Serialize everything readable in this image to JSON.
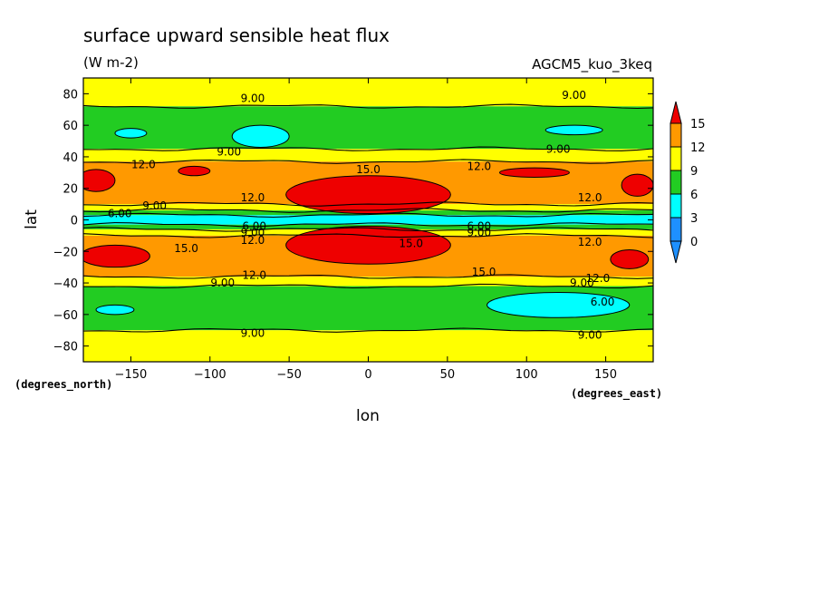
{
  "chart_data": {
    "type": "heatmap",
    "title": "surface upward sensible heat flux",
    "units": "(W m-2)",
    "model": "AGCM5_kuo_3keq",
    "xlabel": "lon",
    "ylabel": "lat",
    "x_units_label": "(degrees_east)",
    "y_units_label": "(degrees_north)",
    "xlim": [
      -180,
      180
    ],
    "ylim": [
      -90,
      90
    ],
    "xticks": [
      -150,
      -100,
      -50,
      0,
      50,
      100,
      150
    ],
    "yticks": [
      -80,
      -60,
      -40,
      -20,
      0,
      20,
      40,
      60,
      80
    ],
    "levels": [
      0,
      3,
      6,
      9,
      12,
      15
    ],
    "colorbar": {
      "labels": [
        "0",
        "3",
        "6",
        "9",
        "12",
        "15"
      ],
      "colors": [
        "#ffffff",
        "#1e90ff",
        "#00ffff",
        "#22cc22",
        "#ffff00",
        "#ff9900",
        "#ee0000"
      ]
    },
    "bands": [
      {
        "lat_from": 72,
        "lat_to": 90,
        "level": 9
      },
      {
        "lat_from": 45,
        "lat_to": 72,
        "level": 6
      },
      {
        "lat_from": 37,
        "lat_to": 45,
        "level": 9
      },
      {
        "lat_from": 10,
        "lat_to": 37,
        "level": 12
      },
      {
        "lat_from": 6,
        "lat_to": 10,
        "level": 9
      },
      {
        "lat_from": 3,
        "lat_to": 6,
        "level": 6
      },
      {
        "lat_from": -3,
        "lat_to": 3,
        "level": 3
      },
      {
        "lat_from": -6,
        "lat_to": -3,
        "level": 6
      },
      {
        "lat_from": -10,
        "lat_to": -6,
        "level": 9
      },
      {
        "lat_from": -36,
        "lat_to": -10,
        "level": 12
      },
      {
        "lat_from": -42,
        "lat_to": -36,
        "level": 9
      },
      {
        "lat_from": -70,
        "lat_to": -42,
        "level": 6
      },
      {
        "lat_from": -90,
        "lat_to": -70,
        "level": 9
      }
    ],
    "patches": [
      {
        "lon": 0,
        "lat": 16,
        "rlon": 52,
        "rlat": 12,
        "level": 15
      },
      {
        "lon": 0,
        "lat": -16,
        "rlon": 52,
        "rlat": 12,
        "level": 15
      },
      {
        "lon": 105,
        "lat": 30,
        "rlon": 22,
        "rlat": 3,
        "level": 15
      },
      {
        "lon": -172,
        "lat": 25,
        "rlon": 12,
        "rlat": 7,
        "level": 15
      },
      {
        "lon": 170,
        "lat": 22,
        "rlon": 10,
        "rlat": 7,
        "level": 15
      },
      {
        "lon": -110,
        "lat": 31,
        "rlon": 10,
        "rlat": 3,
        "level": 15
      },
      {
        "lon": -160,
        "lat": -23,
        "rlon": 22,
        "rlat": 7,
        "level": 15
      },
      {
        "lon": 165,
        "lat": -25,
        "rlon": 12,
        "rlat": 6,
        "level": 15
      },
      {
        "lon": -68,
        "lat": 53,
        "rlon": 18,
        "rlat": 7,
        "level": 3
      },
      {
        "lon": 130,
        "lat": 57,
        "rlon": 18,
        "rlat": 3,
        "level": 3
      },
      {
        "lon": -150,
        "lat": 55,
        "rlon": 10,
        "rlat": 3,
        "level": 3
      },
      {
        "lon": 120,
        "lat": -54,
        "rlon": 45,
        "rlat": 8,
        "level": 3
      },
      {
        "lon": -160,
        "lat": -57,
        "rlon": 12,
        "rlat": 3,
        "level": 3
      }
    ],
    "contour_labels": [
      {
        "text": "9.00",
        "lon": -73,
        "lat": 77
      },
      {
        "text": "9.00",
        "lon": 130,
        "lat": 79
      },
      {
        "text": "9.00",
        "lon": -88,
        "lat": 43
      },
      {
        "text": "9.00",
        "lon": 120,
        "lat": 45
      },
      {
        "text": "12.0",
        "lon": -142,
        "lat": 35
      },
      {
        "text": "15.0",
        "lon": 0,
        "lat": 32
      },
      {
        "text": "12.0",
        "lon": 70,
        "lat": 34
      },
      {
        "text": "12.0",
        "lon": -73,
        "lat": 14
      },
      {
        "text": "12.0",
        "lon": 140,
        "lat": 14
      },
      {
        "text": "9.00",
        "lon": -135,
        "lat": 9
      },
      {
        "text": "6.00",
        "lon": -157,
        "lat": 4
      },
      {
        "text": "6.00",
        "lon": -72,
        "lat": -4
      },
      {
        "text": "9.00",
        "lon": -73,
        "lat": -8
      },
      {
        "text": "12.0",
        "lon": -73,
        "lat": -13
      },
      {
        "text": "6.00",
        "lon": 70,
        "lat": -4
      },
      {
        "text": "9.00",
        "lon": 70,
        "lat": -8
      },
      {
        "text": "15.0",
        "lon": -115,
        "lat": -18
      },
      {
        "text": "15.0",
        "lon": 27,
        "lat": -15
      },
      {
        "text": "12.0",
        "lon": 140,
        "lat": -14
      },
      {
        "text": "15.0",
        "lon": 73,
        "lat": -33
      },
      {
        "text": "12.0",
        "lon": -72,
        "lat": -35
      },
      {
        "text": "9.00",
        "lon": -92,
        "lat": -40
      },
      {
        "text": "12.0",
        "lon": 145,
        "lat": -37
      },
      {
        "text": "9.00",
        "lon": 135,
        "lat": -40
      },
      {
        "text": "6.00",
        "lon": 148,
        "lat": -52
      },
      {
        "text": "9.00",
        "lon": -73,
        "lat": -72
      },
      {
        "text": "9.00",
        "lon": 140,
        "lat": -73
      }
    ]
  }
}
